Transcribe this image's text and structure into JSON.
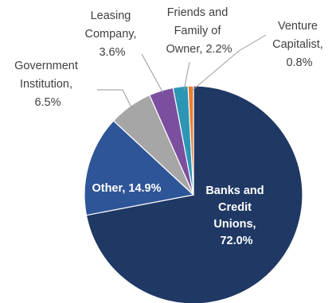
{
  "chart_data": {
    "type": "pie",
    "slices": [
      {
        "key": "banks",
        "label": [
          "Banks and",
          "Credit",
          "Unions,",
          "72.0%"
        ],
        "value": 72.0,
        "color": "#1f3864",
        "label_inside": true
      },
      {
        "key": "other",
        "label": [
          "Other, 14.9%"
        ],
        "value": 14.9,
        "color": "#2e5597",
        "label_inside": true
      },
      {
        "key": "government",
        "label": [
          "Government",
          "Institution,",
          "6.5%"
        ],
        "value": 6.5,
        "color": "#a6a6a6",
        "label_inside": false
      },
      {
        "key": "leasing",
        "label": [
          "Leasing",
          "Company,",
          "3.6%"
        ],
        "value": 3.6,
        "color": "#7b4f9e",
        "label_inside": false
      },
      {
        "key": "friends",
        "label": [
          "Friends and",
          "Family of",
          "Owner, 2.2%"
        ],
        "value": 2.2,
        "color": "#2e96b5",
        "label_inside": false
      },
      {
        "key": "venture",
        "label": [
          "Venture",
          "Capitalist,",
          "0.8%"
        ],
        "value": 0.8,
        "color": "#ed7d31",
        "label_inside": false
      }
    ]
  }
}
